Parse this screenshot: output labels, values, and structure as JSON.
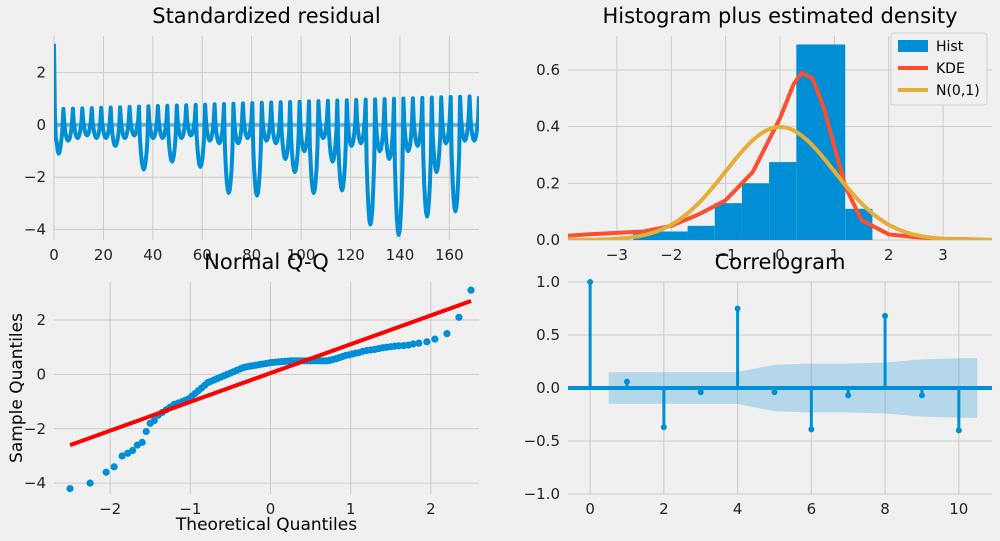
{
  "colors": {
    "background": "#f0f0f0",
    "grid": "#cbcbcb",
    "blue": "#008fd5",
    "red_orange": "#fc4f30",
    "gold": "#e5ae38",
    "qq_line": "#ff0000",
    "band": "#008fd5"
  },
  "chart_data": [
    {
      "id": "standardized-residual",
      "type": "line",
      "title": "Standardized residual",
      "xlabel": "",
      "ylabel": "",
      "xlim": [
        0,
        172
      ],
      "ylim": [
        -4.4,
        3.4
      ],
      "xticks": [
        0,
        20,
        40,
        60,
        80,
        100,
        120,
        140,
        160
      ],
      "yticks": [
        -4,
        -2,
        0,
        2
      ],
      "grid": true,
      "reference_line_y": 0,
      "pattern": {
        "start_peak": 3.1,
        "peak_level": 0.6,
        "peak_level_end": 1.1,
        "trough_levels": [
          -1.1,
          -0.6,
          -0.5,
          -0.4,
          -0.5,
          -0.5,
          -0.8,
          -0.5,
          -0.4,
          -1.7,
          -0.5,
          -0.5,
          -1.4,
          -0.5,
          -0.4,
          -1.6,
          -0.6,
          -0.7,
          -2.6,
          -0.7,
          -0.5,
          -2.7,
          -0.6,
          -0.7,
          -1.3,
          -1.8,
          -1.0,
          -2.6,
          -0.5,
          -1.4,
          -2.5,
          -0.8,
          -0.7,
          -3.8,
          -1.0,
          -1.3,
          -4.2,
          -1.0,
          -0.8,
          -3.5,
          -1.8,
          -0.7,
          -3.3,
          -0.6,
          -0.6
        ]
      }
    },
    {
      "id": "histogram-density",
      "type": "histogram",
      "title": "Histogram plus estimated density",
      "xlim": [
        -3.9,
        3.9
      ],
      "ylim": [
        0,
        0.72
      ],
      "xticks": [
        -3,
        -2,
        -1,
        0,
        1,
        2,
        3
      ],
      "yticks": [
        0.0,
        0.2,
        0.4,
        0.6
      ],
      "grid": true,
      "legend_position": "top-right",
      "legend": [
        "Hist",
        "KDE",
        "N(0,1)"
      ],
      "bins": [
        {
          "x0": -2.7,
          "x1": -1.7,
          "height": 0.03
        },
        {
          "x0": -1.7,
          "x1": -1.2,
          "height": 0.05
        },
        {
          "x0": -1.2,
          "x1": -0.7,
          "height": 0.13
        },
        {
          "x0": -0.7,
          "x1": -0.2,
          "height": 0.2
        },
        {
          "x0": -0.2,
          "x1": 0.3,
          "height": 0.275
        },
        {
          "x0": 0.3,
          "x1": 1.2,
          "height": 0.69
        },
        {
          "x0": 1.2,
          "x1": 1.7,
          "height": 0.11
        }
      ],
      "kde": {
        "x": [
          -3.9,
          -3.5,
          -3.0,
          -2.5,
          -2.0,
          -1.5,
          -1.0,
          -0.5,
          0.0,
          0.25,
          0.4,
          0.6,
          0.8,
          1.0,
          1.2,
          1.5,
          2.0,
          2.5,
          3.0,
          3.5,
          3.9
        ],
        "y": [
          0.015,
          0.02,
          0.025,
          0.03,
          0.05,
          0.09,
          0.14,
          0.24,
          0.43,
          0.55,
          0.59,
          0.57,
          0.47,
          0.33,
          0.19,
          0.07,
          0.02,
          0.01,
          0.004,
          0.002,
          0.0
        ]
      },
      "normal": {
        "mean": 0,
        "std": 1
      }
    },
    {
      "id": "normal-qq",
      "type": "scatter",
      "title": "Normal Q-Q",
      "xlabel": "Theoretical Quantiles",
      "ylabel": "Sample Quantiles",
      "xlim": [
        -2.7,
        2.6
      ],
      "ylim": [
        -4.4,
        3.4
      ],
      "xticks": [
        -2,
        -1,
        0,
        1,
        2
      ],
      "yticks": [
        -4,
        -2,
        0,
        2
      ],
      "grid": true,
      "points": {
        "x": [
          -2.5,
          -2.25,
          -2.05,
          -1.95,
          -1.85,
          -1.78,
          -1.72,
          -1.66,
          -1.6,
          -1.55,
          -1.5,
          -1.45,
          -1.4,
          -1.35,
          -1.3,
          -1.25,
          -1.2,
          -1.15,
          -1.1,
          -1.06,
          -1.02,
          -0.98,
          -0.94,
          -0.9,
          -0.86,
          -0.82,
          -0.78,
          -0.74,
          -0.7,
          -0.66,
          -0.62,
          -0.58,
          -0.54,
          -0.5,
          -0.46,
          -0.42,
          -0.38,
          -0.34,
          -0.3,
          -0.26,
          -0.22,
          -0.18,
          -0.14,
          -0.1,
          -0.06,
          -0.02,
          0.02,
          0.06,
          0.1,
          0.14,
          0.18,
          0.22,
          0.26,
          0.3,
          0.34,
          0.38,
          0.42,
          0.46,
          0.5,
          0.54,
          0.58,
          0.62,
          0.66,
          0.7,
          0.74,
          0.78,
          0.82,
          0.86,
          0.9,
          0.94,
          0.98,
          1.02,
          1.06,
          1.1,
          1.15,
          1.2,
          1.25,
          1.3,
          1.35,
          1.4,
          1.45,
          1.5,
          1.55,
          1.6,
          1.66,
          1.72,
          1.78,
          1.85,
          1.95,
          2.05,
          2.2,
          2.35,
          2.5
        ],
        "y": [
          -4.2,
          -4.0,
          -3.6,
          -3.4,
          -3.0,
          -2.9,
          -2.8,
          -2.6,
          -2.5,
          -2.1,
          -1.8,
          -1.7,
          -1.5,
          -1.4,
          -1.3,
          -1.2,
          -1.1,
          -1.05,
          -1.0,
          -0.95,
          -0.9,
          -0.8,
          -0.7,
          -0.6,
          -0.5,
          -0.4,
          -0.3,
          -0.25,
          -0.2,
          -0.15,
          -0.1,
          -0.05,
          0.0,
          0.05,
          0.1,
          0.15,
          0.2,
          0.25,
          0.28,
          0.3,
          0.32,
          0.34,
          0.36,
          0.38,
          0.4,
          0.42,
          0.44,
          0.45,
          0.46,
          0.47,
          0.48,
          0.49,
          0.5,
          0.5,
          0.5,
          0.5,
          0.5,
          0.5,
          0.5,
          0.5,
          0.5,
          0.5,
          0.5,
          0.5,
          0.52,
          0.55,
          0.58,
          0.62,
          0.66,
          0.7,
          0.72,
          0.75,
          0.78,
          0.8,
          0.85,
          0.88,
          0.9,
          0.92,
          0.95,
          0.98,
          1.0,
          1.02,
          1.04,
          1.05,
          1.06,
          1.08,
          1.12,
          1.15,
          1.2,
          1.3,
          1.5,
          2.1,
          3.1
        ]
      },
      "reference_line": {
        "x": [
          -2.5,
          2.5
        ],
        "y": [
          -2.6,
          2.7
        ]
      }
    },
    {
      "id": "correlogram",
      "type": "stem",
      "title": "Correlogram",
      "xlim": [
        -0.6,
        10.9
      ],
      "ylim": [
        -1.0,
        1.0
      ],
      "xticks": [
        0,
        2,
        4,
        6,
        8,
        10
      ],
      "yticks": [
        -1.0,
        -0.5,
        0.0,
        0.5,
        1.0
      ],
      "grid": true,
      "lags": [
        0,
        1,
        2,
        3,
        4,
        5,
        6,
        7,
        8,
        9,
        10
      ],
      "values": [
        1.0,
        0.06,
        -0.37,
        -0.04,
        0.75,
        -0.04,
        -0.39,
        -0.07,
        0.68,
        -0.07,
        -0.4
      ],
      "confidence_band": {
        "x": [
          0.5,
          1,
          2,
          3,
          4,
          5,
          6,
          7,
          8,
          9,
          10,
          10.5
        ],
        "upper": [
          0.15,
          0.15,
          0.15,
          0.15,
          0.15,
          0.22,
          0.23,
          0.23,
          0.24,
          0.27,
          0.28,
          0.28
        ]
      }
    }
  ]
}
